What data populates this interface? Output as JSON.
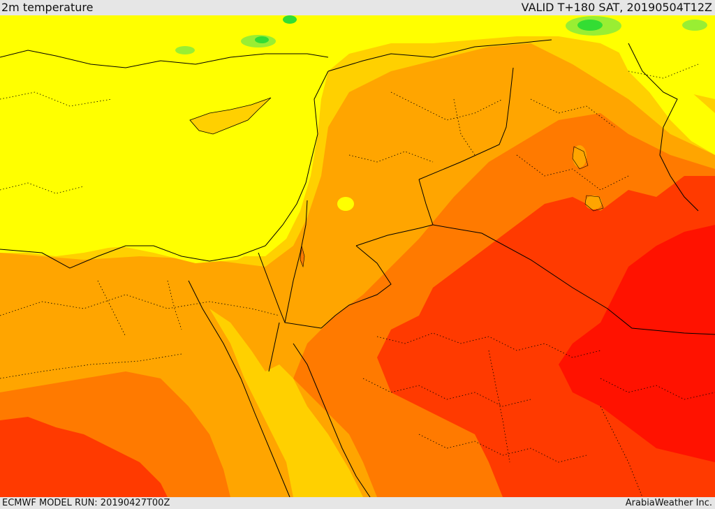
{
  "header": {
    "title": "2m temperature",
    "valid": "VALID T+180 SAT, 20190504T12Z"
  },
  "footer": {
    "model_run": "ECMWF MODEL RUN: 20190427T00Z",
    "credit": "ArabiaWeather Inc."
  },
  "colors": {
    "band_coolest": "#33dd33",
    "band_cool": "#99ee33",
    "band_mild": "#ffff00",
    "band_warm": "#ffd000",
    "band_hot": "#ffa500",
    "band_hotter": "#ff7a00",
    "band_hottest": "#ff3a00",
    "band_extreme": "#ff1200",
    "border": "#000000"
  }
}
